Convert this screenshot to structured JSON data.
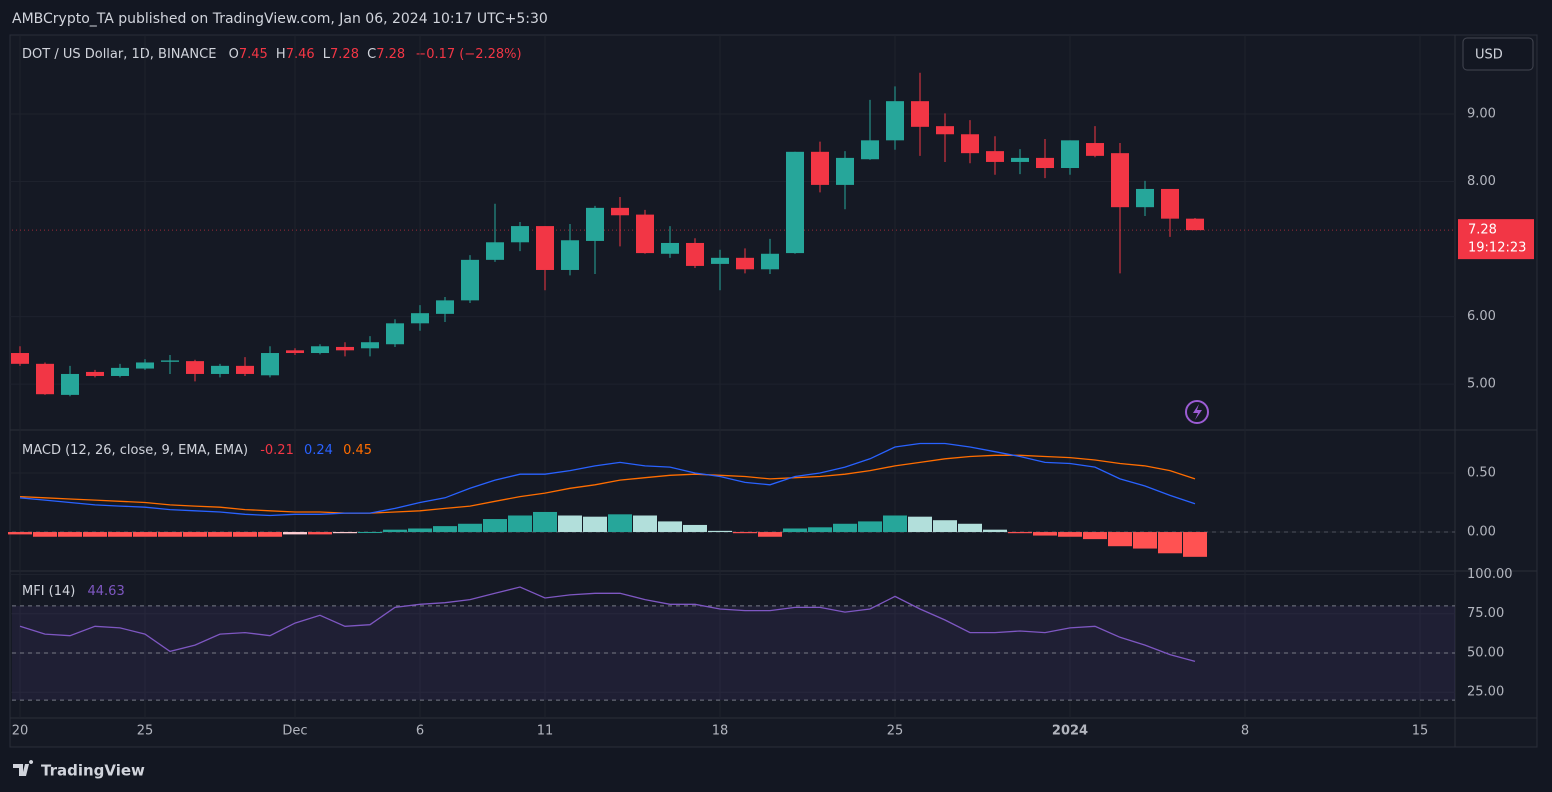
{
  "header": {
    "publisher": "AMBCrypto_TA published on TradingView.com, Jan 06, 2024 10:17 UTC+5:30"
  },
  "footer": {
    "brand": "TradingView"
  },
  "currency": "USD",
  "countdown": "19:12:23",
  "chart_data": [
    {
      "type": "candlestick",
      "title": "DOT / US Dollar, 1D, BINANCE",
      "ohlc_letters": [
        "O",
        "H",
        "L",
        "C"
      ],
      "change": "−0.17 (−2.28%)",
      "x": [
        0,
        1,
        2,
        3,
        4,
        5,
        6,
        7,
        8,
        9,
        10,
        11,
        12,
        13,
        14,
        15,
        16,
        17,
        18,
        19,
        20,
        21,
        22,
        23,
        24,
        25,
        26,
        27,
        28,
        29,
        30,
        31,
        32,
        33,
        34,
        35,
        36,
        37,
        38,
        39,
        40,
        41,
        42,
        43,
        44,
        45,
        46,
        47
      ],
      "open": [
        5.46,
        5.3,
        4.84,
        5.18,
        5.12,
        5.23,
        5.33,
        5.34,
        5.15,
        5.27,
        5.13,
        5.5,
        5.46,
        5.55,
        5.53,
        5.59,
        5.9,
        6.04,
        6.24,
        6.84,
        7.1,
        7.34,
        6.69,
        7.12,
        7.61,
        7.51,
        6.93,
        7.09,
        6.78,
        6.87,
        6.7,
        6.94,
        8.44,
        7.95,
        8.33,
        8.61,
        9.19,
        8.82,
        8.7,
        8.45,
        8.29,
        8.35,
        8.2,
        8.57,
        8.42,
        7.62,
        7.89,
        7.45
      ],
      "high": [
        5.56,
        5.32,
        5.27,
        5.21,
        5.3,
        5.37,
        5.43,
        5.36,
        5.3,
        5.4,
        5.56,
        5.53,
        5.59,
        5.62,
        5.71,
        5.96,
        6.17,
        6.29,
        6.91,
        7.67,
        7.4,
        7.34,
        7.37,
        7.64,
        7.77,
        7.58,
        7.34,
        7.16,
        6.99,
        7.01,
        7.15,
        8.44,
        8.59,
        8.45,
        9.21,
        9.41,
        9.61,
        9.01,
        8.91,
        8.67,
        8.48,
        8.63,
        8.61,
        8.82,
        8.57,
        8.01,
        7.89,
        7.46
      ],
      "low": [
        5.27,
        4.84,
        4.82,
        5.1,
        5.1,
        5.21,
        5.15,
        5.04,
        5.1,
        5.12,
        5.1,
        5.43,
        5.44,
        5.41,
        5.41,
        5.55,
        5.79,
        5.92,
        6.2,
        6.81,
        6.97,
        6.39,
        6.61,
        6.63,
        7.04,
        6.93,
        6.87,
        6.72,
        6.39,
        6.64,
        6.63,
        6.93,
        7.84,
        7.59,
        8.32,
        8.47,
        8.38,
        8.29,
        8.27,
        8.1,
        8.11,
        8.05,
        8.1,
        8.36,
        6.64,
        7.49,
        7.18,
        7.28
      ],
      "close": [
        5.3,
        4.85,
        5.15,
        5.12,
        5.24,
        5.32,
        5.35,
        5.15,
        5.27,
        5.15,
        5.46,
        5.46,
        5.56,
        5.5,
        5.62,
        5.9,
        6.05,
        6.24,
        6.84,
        7.1,
        7.34,
        6.69,
        7.13,
        7.61,
        7.5,
        6.94,
        7.09,
        6.75,
        6.87,
        6.7,
        6.93,
        8.44,
        7.95,
        8.35,
        8.61,
        9.19,
        8.81,
        8.7,
        8.42,
        8.29,
        8.35,
        8.2,
        8.61,
        8.38,
        7.62,
        7.89,
        7.45,
        7.28
      ],
      "colors": {
        "up": "#26a69a",
        "down": "#f23645"
      },
      "xlim": [
        -0.32,
        57.4
      ],
      "xticks": [
        {
          "value": 0,
          "label": "20"
        },
        {
          "value": 5,
          "label": "25"
        },
        {
          "value": 11,
          "label": "Dec"
        },
        {
          "value": 16,
          "label": "6"
        },
        {
          "value": 21,
          "label": "11"
        },
        {
          "value": 28,
          "label": "18"
        },
        {
          "value": 35,
          "label": "25"
        },
        {
          "value": 42,
          "label": "2024"
        },
        {
          "value": 49,
          "label": "8"
        },
        {
          "value": 56,
          "label": "15"
        }
      ],
      "ylim": [
        4.32,
        10.17
      ],
      "yticks": [
        {
          "value": 5,
          "label": "5.00"
        },
        {
          "value": 6,
          "label": "6.00"
        },
        {
          "value": 8,
          "label": "8.00"
        },
        {
          "value": 9,
          "label": "9.00"
        }
      ],
      "grid": true
    },
    {
      "type": "macd",
      "title": "MACD (12, 26, close, 9, EMA, EMA)",
      "histogram": {
        "colors": {
          "up_rising": "#26a69a",
          "up_falling": "#b2dfdb",
          "down_falling": "#ff5252",
          "down_rising": "#ffcdd2"
        },
        "values": [
          -0.02,
          -0.04,
          -0.04,
          -0.04,
          -0.04,
          -0.04,
          -0.04,
          -0.04,
          -0.04,
          -0.04,
          -0.04,
          -0.02,
          -0.02,
          -0.01,
          0.0,
          0.02,
          0.03,
          0.05,
          0.07,
          0.11,
          0.14,
          0.17,
          0.14,
          0.13,
          0.15,
          0.14,
          0.09,
          0.06,
          0.01,
          -0.01,
          -0.04,
          0.03,
          0.04,
          0.07,
          0.09,
          0.14,
          0.13,
          0.1,
          0.07,
          0.02,
          -0.01,
          -0.03,
          -0.04,
          -0.06,
          -0.12,
          -0.14,
          -0.18,
          -0.21
        ]
      },
      "macd": {
        "color": "#2962ff",
        "values": [
          0.29,
          0.27,
          0.25,
          0.23,
          0.22,
          0.21,
          0.19,
          0.18,
          0.17,
          0.15,
          0.14,
          0.15,
          0.15,
          0.16,
          0.16,
          0.2,
          0.25,
          0.29,
          0.37,
          0.44,
          0.49,
          0.49,
          0.52,
          0.56,
          0.59,
          0.56,
          0.55,
          0.5,
          0.47,
          0.42,
          0.4,
          0.47,
          0.5,
          0.55,
          0.62,
          0.72,
          0.75,
          0.75,
          0.72,
          0.68,
          0.64,
          0.59,
          0.58,
          0.55,
          0.45,
          0.39,
          0.31,
          0.24
        ]
      },
      "signal": {
        "color": "#ff6d00",
        "values": [
          0.3,
          0.29,
          0.28,
          0.27,
          0.26,
          0.25,
          0.23,
          0.22,
          0.21,
          0.19,
          0.18,
          0.17,
          0.17,
          0.16,
          0.16,
          0.17,
          0.18,
          0.2,
          0.22,
          0.26,
          0.3,
          0.33,
          0.37,
          0.4,
          0.44,
          0.46,
          0.48,
          0.49,
          0.48,
          0.47,
          0.45,
          0.46,
          0.47,
          0.49,
          0.52,
          0.56,
          0.59,
          0.62,
          0.64,
          0.65,
          0.65,
          0.64,
          0.63,
          0.61,
          0.58,
          0.56,
          0.52,
          0.45
        ]
      },
      "ylim": [
        -0.33,
        0.864
      ],
      "yticks": [
        {
          "value": 0,
          "label": "0.00"
        },
        {
          "value": 0.5,
          "label": "0.50"
        }
      ],
      "grid": true
    },
    {
      "type": "line",
      "title": "MFI (14)",
      "color": "#7e57c2",
      "values": [
        67,
        62,
        61,
        67,
        66,
        62,
        51,
        55,
        62,
        63,
        61,
        69,
        74,
        67,
        68,
        79,
        81,
        82,
        84,
        88,
        92,
        85,
        87,
        88,
        88,
        84,
        81,
        81,
        78,
        77,
        77,
        79,
        79,
        76,
        78,
        86,
        78,
        71,
        63,
        63,
        64,
        63,
        66,
        67,
        60,
        55,
        49,
        44.63
      ],
      "bands": [
        20,
        50,
        80
      ],
      "ylim": [
        8.6,
        102.2
      ],
      "yticks": [
        {
          "value": 25,
          "label": "25.00"
        },
        {
          "value": 50,
          "label": "50.00"
        },
        {
          "value": 75,
          "label": "75.00"
        },
        {
          "value": 100,
          "label": "100.00"
        }
      ],
      "grid": true
    }
  ]
}
